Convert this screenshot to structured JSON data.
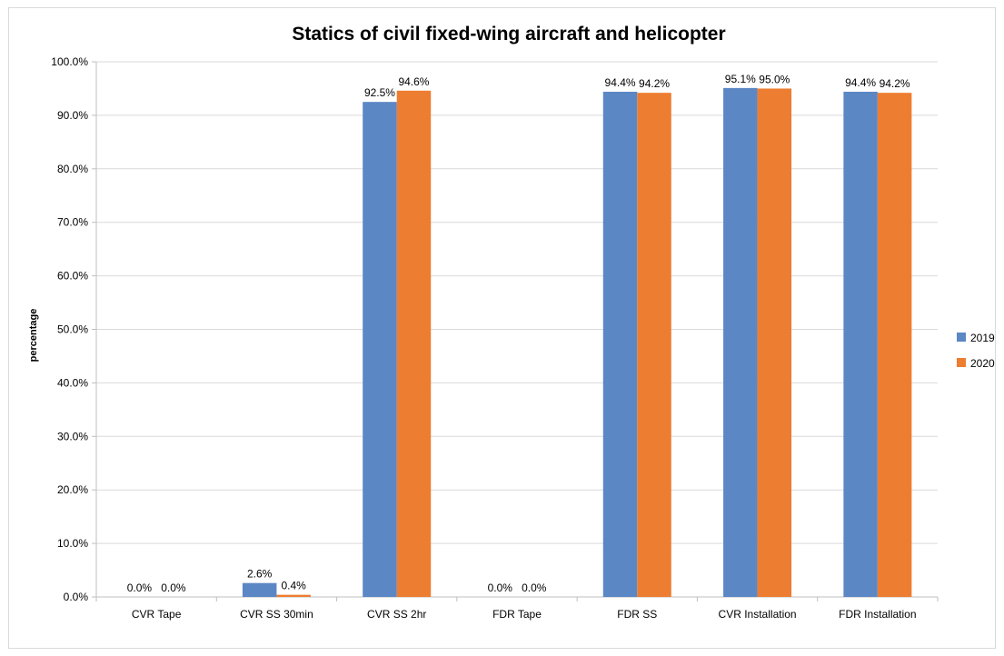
{
  "chart_data": {
    "type": "bar",
    "title": "Statics of civil fixed-wing aircraft and helicopter",
    "xlabel": "",
    "ylabel": "percentage",
    "ylim": [
      0,
      100
    ],
    "yticks": [
      "0.0%",
      "10.0%",
      "20.0%",
      "30.0%",
      "40.0%",
      "50.0%",
      "60.0%",
      "70.0%",
      "80.0%",
      "90.0%",
      "100.0%"
    ],
    "categories": [
      "CVR Tape",
      "CVR SS 30min",
      "CVR SS 2hr",
      "FDR Tape",
      "FDR SS",
      "CVR Installation",
      "FDR Installation"
    ],
    "series": [
      {
        "name": "2019",
        "color": "#5b87c5",
        "values": [
          0.0,
          2.6,
          92.5,
          0.0,
          94.4,
          95.1,
          94.4
        ],
        "labels": [
          "0.0%",
          "2.6%",
          "92.5%",
          "0.0%",
          "94.4%",
          "95.1%",
          "94.4%"
        ]
      },
      {
        "name": "2020",
        "color": "#ed7d31",
        "values": [
          0.0,
          0.4,
          94.6,
          0.0,
          94.2,
          95.0,
          94.2
        ],
        "labels": [
          "0.0%",
          "0.4%",
          "94.6%",
          "0.0%",
          "94.2%",
          "95.0%",
          "94.2%"
        ]
      }
    ],
    "grid": true,
    "legend": "right"
  }
}
